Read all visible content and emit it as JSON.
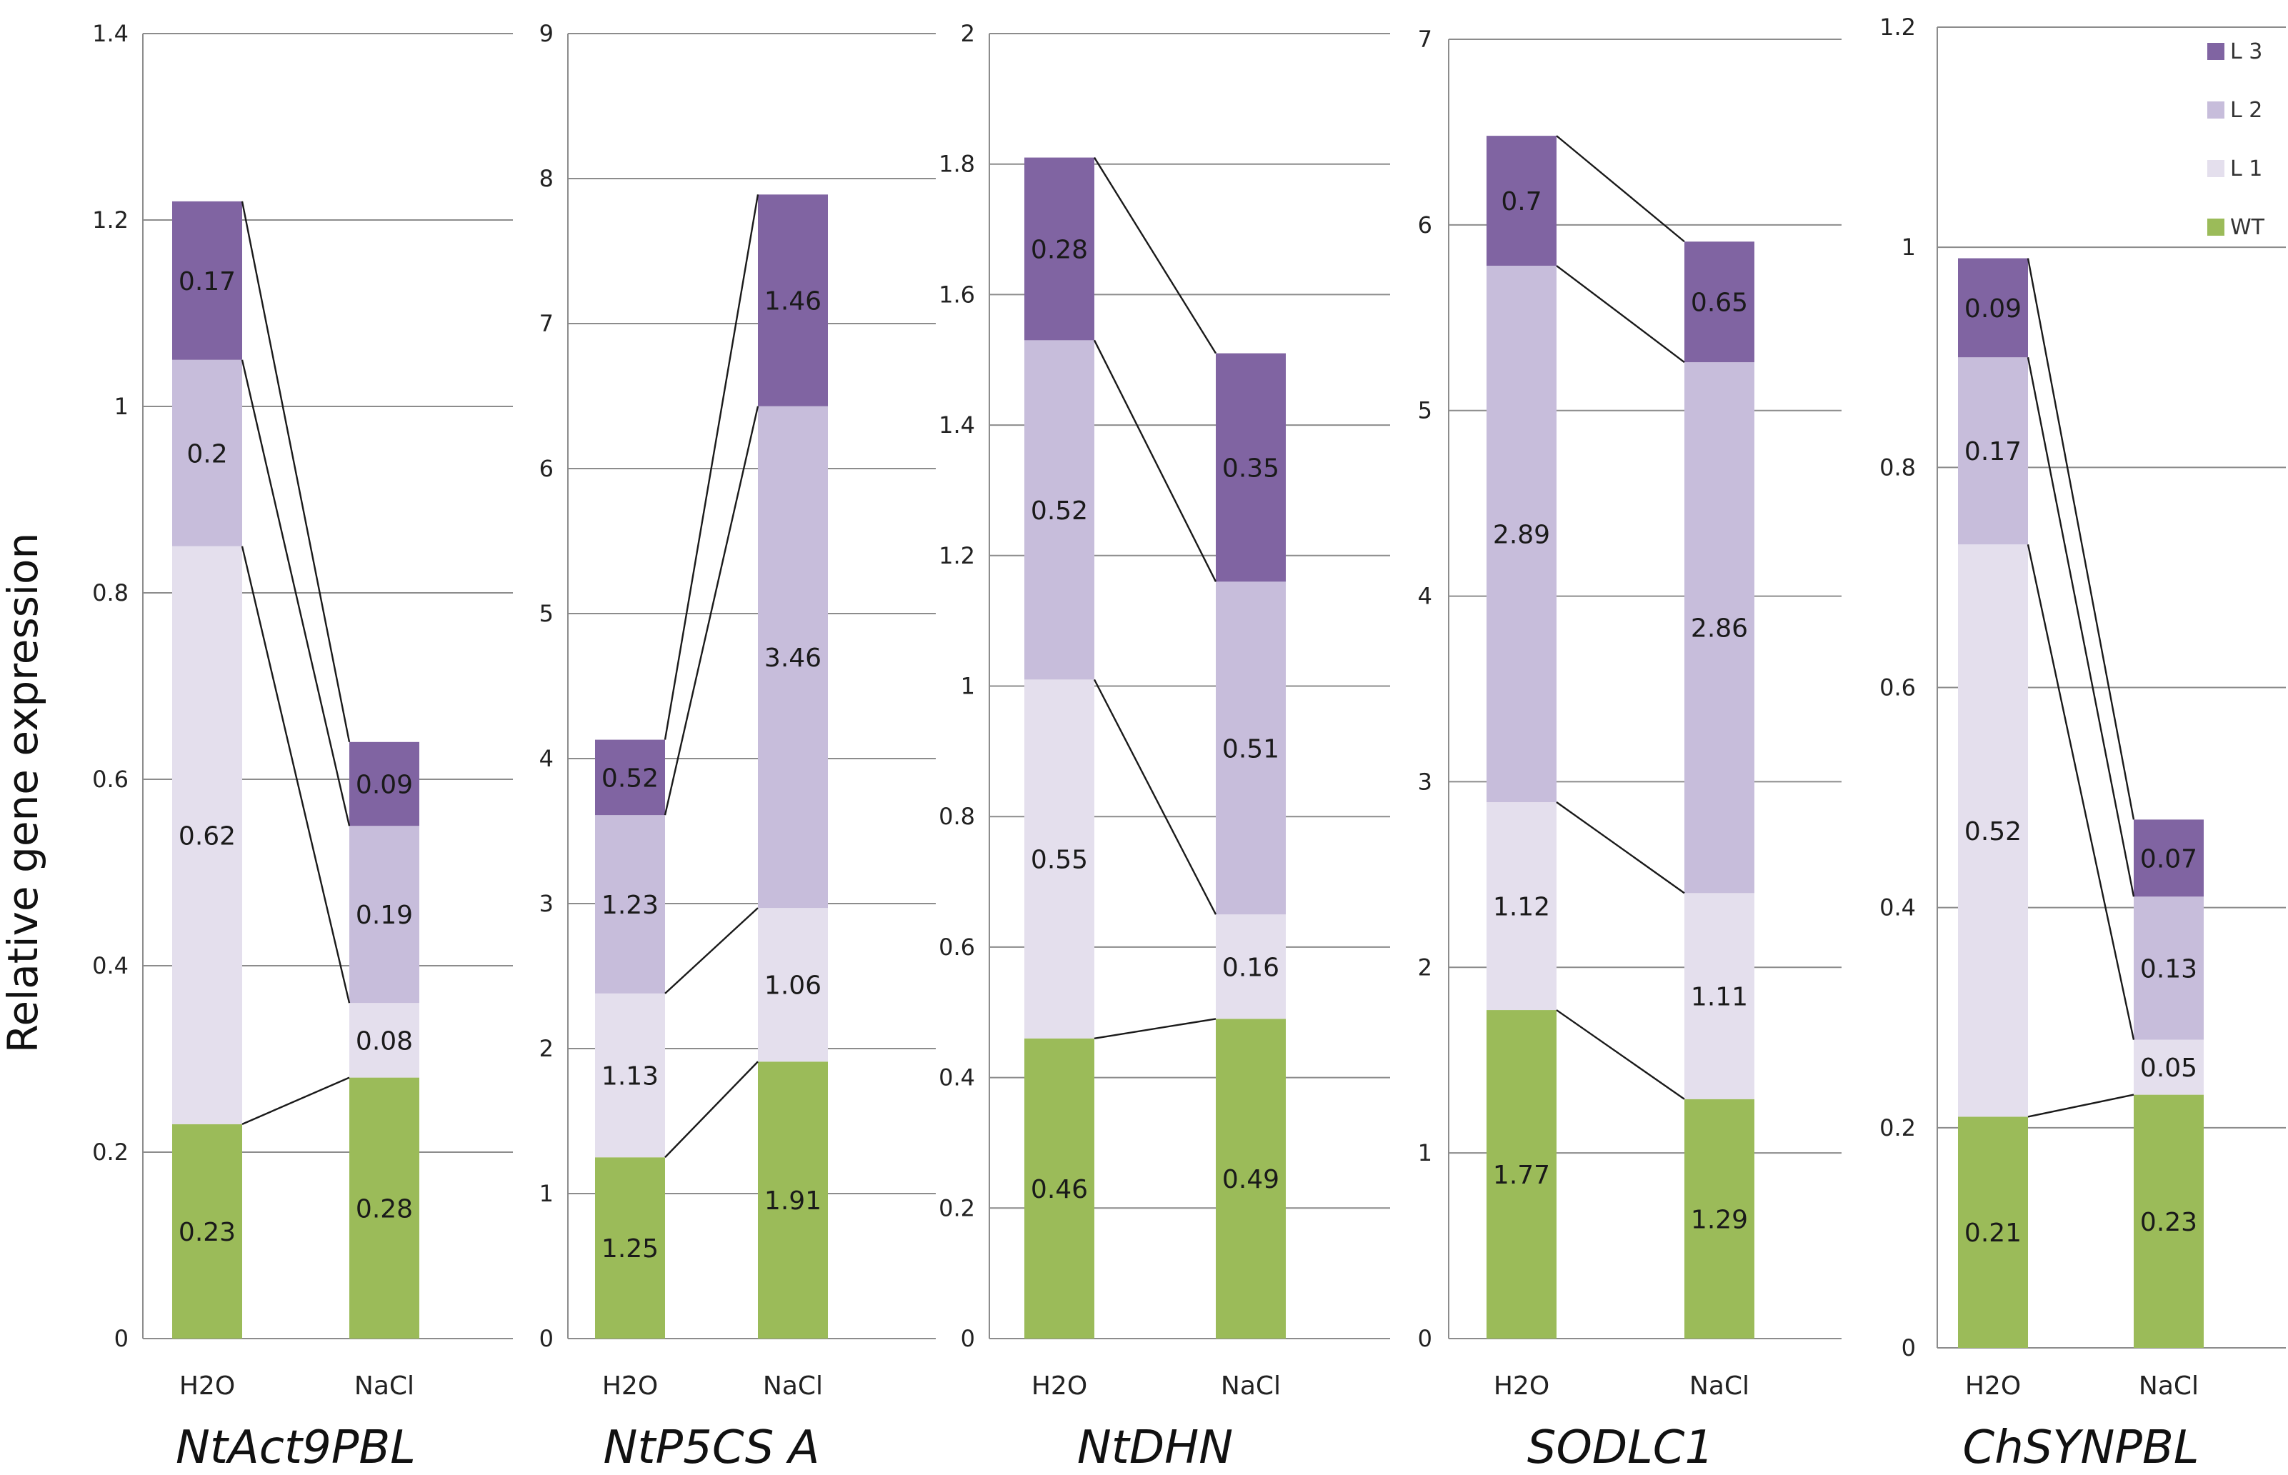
{
  "chart_data": {
    "type": "bar",
    "stacked": true,
    "ylabel": "Relative gene expression",
    "categories": [
      "H2O",
      "NaCl"
    ],
    "legend": {
      "placement": "top-right",
      "entries": [
        {
          "name": "L 3",
          "color": "#8064a2"
        },
        {
          "name": "L 2",
          "color": "#c7bddb"
        },
        {
          "name": "L 1",
          "color": "#e4dfed"
        },
        {
          "name": "WT",
          "color": "#9bbb59"
        }
      ]
    },
    "panels": [
      {
        "title": "NtAct9PBL",
        "ylim": [
          0,
          1.4
        ],
        "yticks": [
          "0",
          "0.2",
          "0.4",
          "0.6",
          "0.8",
          "1",
          "1.2",
          "1.4"
        ],
        "yticks_values": [
          0,
          0.2,
          0.4,
          0.6,
          0.8,
          1,
          1.2,
          1.4
        ],
        "series": [
          {
            "name": "WT",
            "values": [
              0.23,
              0.28
            ]
          },
          {
            "name": "L 1",
            "values": [
              0.62,
              0.08
            ]
          },
          {
            "name": "L 2",
            "values": [
              0.2,
              0.19
            ]
          },
          {
            "name": "L 3",
            "values": [
              0.17,
              0.09
            ]
          }
        ],
        "labels": [
          [
            "0.23",
            "0.28"
          ],
          [
            "0.62",
            "0.08"
          ],
          [
            "0.2",
            "0.19"
          ],
          [
            "0.17",
            "0.09"
          ]
        ]
      },
      {
        "title": "NtP5CS A",
        "ylim": [
          0,
          9
        ],
        "yticks": [
          "0",
          "1",
          "2",
          "3",
          "4",
          "5",
          "6",
          "7",
          "8",
          "9"
        ],
        "yticks_values": [
          0,
          1,
          2,
          3,
          4,
          5,
          6,
          7,
          8,
          9
        ],
        "series": [
          {
            "name": "WT",
            "values": [
              1.25,
              1.91
            ]
          },
          {
            "name": "L 1",
            "values": [
              1.13,
              1.06
            ]
          },
          {
            "name": "L 2",
            "values": [
              1.23,
              3.46
            ]
          },
          {
            "name": "L 3",
            "values": [
              0.52,
              1.46
            ]
          }
        ],
        "labels": [
          [
            "1.25",
            "1.91"
          ],
          [
            "1.13",
            "1.06"
          ],
          [
            "1.23",
            "3.46"
          ],
          [
            "0.52",
            "1.46"
          ]
        ]
      },
      {
        "title": "NtDHN",
        "ylim": [
          0,
          2
        ],
        "yticks": [
          "0",
          "0.2",
          "0.4",
          "0.6",
          "0.8",
          "1",
          "1.2",
          "1.4",
          "1.6",
          "1.8",
          "2"
        ],
        "yticks_values": [
          0,
          0.2,
          0.4,
          0.6,
          0.8,
          1,
          1.2,
          1.4,
          1.6,
          1.8,
          2
        ],
        "series": [
          {
            "name": "WT",
            "values": [
              0.46,
              0.49
            ]
          },
          {
            "name": "L 1",
            "values": [
              0.55,
              0.16
            ]
          },
          {
            "name": "L 2",
            "values": [
              0.52,
              0.51
            ]
          },
          {
            "name": "L 3",
            "values": [
              0.28,
              0.35
            ]
          }
        ],
        "labels": [
          [
            "0.46",
            "0.49"
          ],
          [
            "0.55",
            "0.16"
          ],
          [
            "0.52",
            "0.51"
          ],
          [
            "0.28",
            "0.35"
          ]
        ]
      },
      {
        "title": "SODLC1",
        "ylim": [
          0,
          7
        ],
        "yticks": [
          "0",
          "1",
          "2",
          "3",
          "4",
          "5",
          "6",
          "7"
        ],
        "yticks_values": [
          0,
          1,
          2,
          3,
          4,
          5,
          6,
          7
        ],
        "series": [
          {
            "name": "WT",
            "values": [
              1.77,
              1.29
            ]
          },
          {
            "name": "L 1",
            "values": [
              1.12,
              1.11
            ]
          },
          {
            "name": "L 2",
            "values": [
              2.89,
              2.86
            ]
          },
          {
            "name": "L 3",
            "values": [
              0.7,
              0.65
            ]
          }
        ],
        "labels": [
          [
            "1.77",
            "1.29"
          ],
          [
            "1.12",
            "1.11"
          ],
          [
            "2.89",
            "2.86"
          ],
          [
            "0.7",
            "0.65"
          ]
        ]
      },
      {
        "title": "ChSYNPBL",
        "ylim": [
          0,
          1.2
        ],
        "yticks": [
          "0",
          "0.2",
          "0.4",
          "0.6",
          "0.8",
          "1",
          "1.2"
        ],
        "yticks_values": [
          0,
          0.2,
          0.4,
          0.6,
          0.8,
          1,
          1.2
        ],
        "series": [
          {
            "name": "WT",
            "values": [
              0.21,
              0.23
            ]
          },
          {
            "name": "L 1",
            "values": [
              0.52,
              0.05
            ]
          },
          {
            "name": "L 2",
            "values": [
              0.17,
              0.13
            ]
          },
          {
            "name": "L 3",
            "values": [
              0.09,
              0.07
            ]
          }
        ],
        "labels": [
          [
            "0.21",
            "0.23"
          ],
          [
            "0.52",
            "0.05"
          ],
          [
            "0.17",
            "0.13"
          ],
          [
            "0.09",
            "0.07"
          ]
        ]
      }
    ]
  }
}
